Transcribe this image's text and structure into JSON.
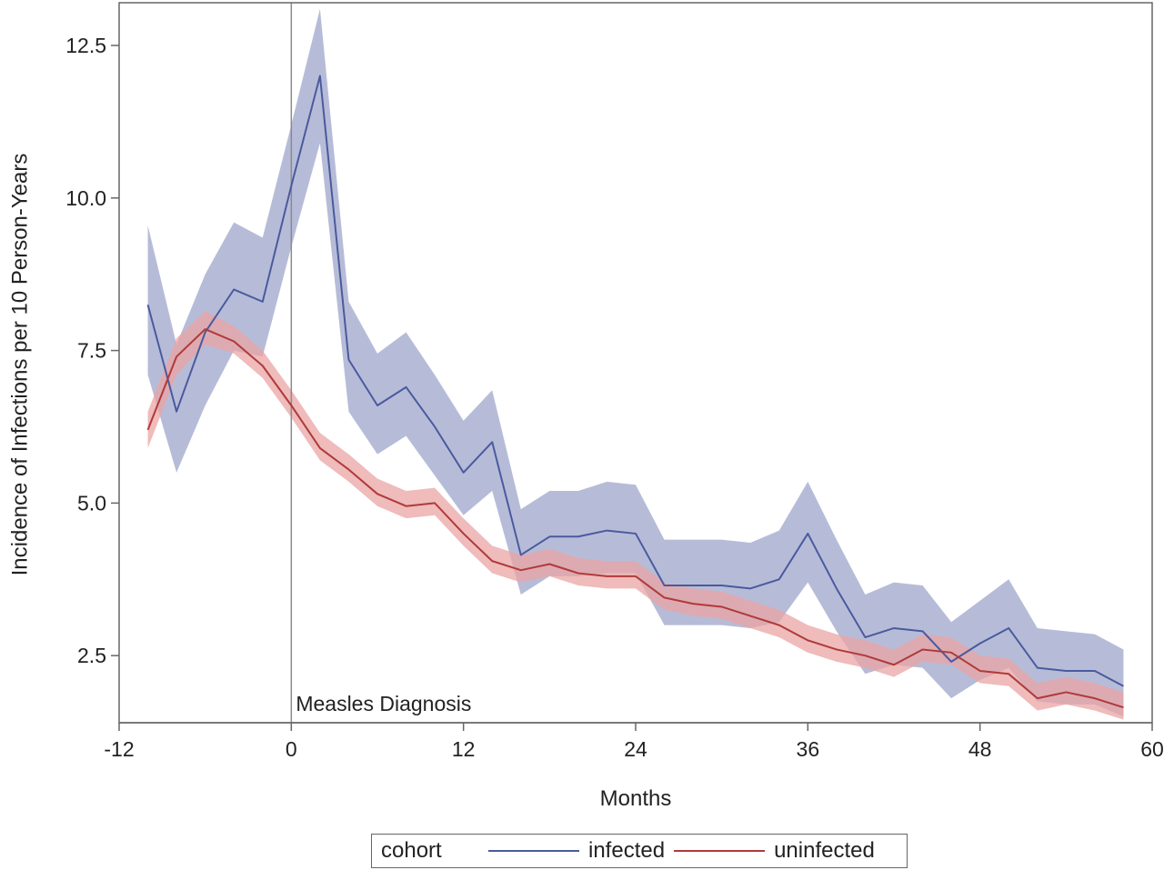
{
  "chart_data": {
    "type": "line",
    "xlabel": "Months",
    "ylabel": "Incidence of Infections per 10 Person-Years",
    "xlim": [
      -12,
      60
    ],
    "ylim": [
      1.4,
      13.2
    ],
    "xticks": [
      -12,
      0,
      12,
      24,
      36,
      48,
      60
    ],
    "xtick_labels": [
      "-12",
      "0",
      "12",
      "24",
      "36",
      "48",
      "60"
    ],
    "yticks": [
      2.5,
      5.0,
      7.5,
      10.0,
      12.5
    ],
    "ytick_labels": [
      "2.5",
      "5.0",
      "7.5",
      "10.0",
      "12.5"
    ],
    "grid": false,
    "legend": {
      "title": "cohort",
      "placement": "bottom"
    },
    "reference_line": {
      "x": 0,
      "label": "Measles Diagnosis"
    },
    "x": [
      -10,
      -8,
      -6,
      -4,
      -2,
      0,
      2,
      4,
      6,
      8,
      10,
      12,
      14,
      16,
      18,
      20,
      22,
      24,
      26,
      28,
      30,
      32,
      34,
      36,
      38,
      40,
      42,
      44,
      46,
      48,
      50,
      52,
      54,
      56,
      58
    ],
    "series": [
      {
        "name": "infected",
        "color": "#4a5a9e",
        "band_color": "#97a0c8",
        "values": [
          8.25,
          6.5,
          7.8,
          8.5,
          8.3,
          10.2,
          12.0,
          7.35,
          6.6,
          6.9,
          6.25,
          5.5,
          6.0,
          4.15,
          4.45,
          4.45,
          4.55,
          4.5,
          3.65,
          3.65,
          3.65,
          3.6,
          3.75,
          4.5,
          3.6,
          2.8,
          2.95,
          2.9,
          2.4,
          2.7,
          2.95,
          2.3,
          2.25,
          2.25,
          2.0
        ],
        "lower": [
          7.1,
          5.5,
          6.6,
          7.5,
          7.4,
          9.2,
          10.9,
          6.5,
          5.8,
          6.1,
          5.45,
          4.8,
          5.2,
          3.5,
          3.8,
          3.8,
          3.85,
          3.85,
          3.0,
          3.0,
          3.0,
          2.95,
          3.05,
          3.7,
          2.9,
          2.2,
          2.35,
          2.3,
          1.8,
          2.1,
          2.3,
          1.75,
          1.7,
          1.7,
          1.5
        ],
        "upper": [
          9.55,
          7.6,
          8.75,
          9.6,
          9.35,
          11.2,
          13.1,
          8.3,
          7.45,
          7.8,
          7.1,
          6.35,
          6.85,
          4.9,
          5.2,
          5.2,
          5.35,
          5.3,
          4.4,
          4.4,
          4.4,
          4.35,
          4.55,
          5.35,
          4.4,
          3.5,
          3.7,
          3.65,
          3.05,
          3.4,
          3.75,
          2.95,
          2.9,
          2.85,
          2.6
        ]
      },
      {
        "name": "uninfected",
        "color": "#b03a3a",
        "band_color": "#e9a4a4",
        "values": [
          6.2,
          7.4,
          7.85,
          7.65,
          7.25,
          6.6,
          5.9,
          5.55,
          5.15,
          4.95,
          5.0,
          4.5,
          4.05,
          3.9,
          4.0,
          3.85,
          3.8,
          3.8,
          3.45,
          3.35,
          3.3,
          3.15,
          3.0,
          2.75,
          2.6,
          2.5,
          2.35,
          2.6,
          2.55,
          2.25,
          2.2,
          1.8,
          1.9,
          1.8,
          1.65
        ],
        "lower": [
          5.9,
          7.1,
          7.6,
          7.45,
          7.05,
          6.4,
          5.7,
          5.35,
          4.95,
          4.75,
          4.8,
          4.3,
          3.85,
          3.7,
          3.8,
          3.65,
          3.6,
          3.6,
          3.25,
          3.15,
          3.1,
          2.95,
          2.8,
          2.55,
          2.4,
          2.3,
          2.15,
          2.4,
          2.35,
          2.05,
          2.0,
          1.6,
          1.7,
          1.6,
          1.45
        ],
        "upper": [
          6.5,
          7.7,
          8.15,
          7.9,
          7.5,
          6.85,
          6.15,
          5.8,
          5.4,
          5.2,
          5.25,
          4.75,
          4.3,
          4.15,
          4.25,
          4.1,
          4.05,
          4.05,
          3.7,
          3.6,
          3.55,
          3.4,
          3.25,
          3.0,
          2.85,
          2.75,
          2.6,
          2.85,
          2.8,
          2.5,
          2.45,
          2.05,
          2.15,
          2.05,
          1.9
        ]
      }
    ]
  }
}
